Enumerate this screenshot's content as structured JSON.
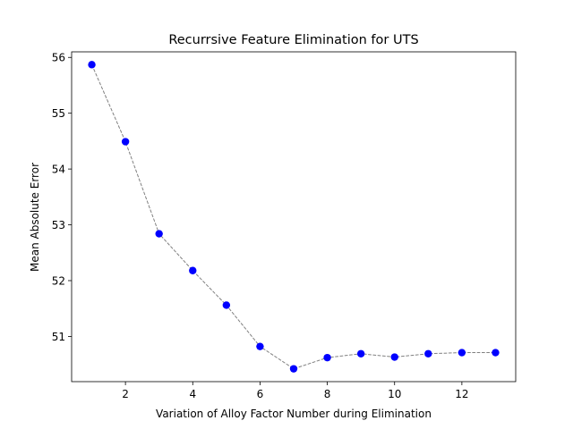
{
  "chart_data": {
    "type": "line",
    "title": "Recurrsive Feature Elimination for UTS",
    "xlabel": "Variation of Alloy Factor Number during Elimination",
    "ylabel": "Mean Absolute Error",
    "x": [
      1,
      2,
      3,
      4,
      5,
      6,
      7,
      8,
      9,
      10,
      11,
      12,
      13
    ],
    "series": [
      {
        "values": [
          55.87,
          54.49,
          52.84,
          52.18,
          51.56,
          50.82,
          50.42,
          50.62,
          50.69,
          50.63,
          50.69,
          50.71,
          50.71
        ],
        "line_color": "#808080",
        "line_style": "dashed",
        "marker_color": "#0000ff"
      }
    ],
    "xlim": [
      0.4,
      13.6
    ],
    "ylim": [
      50.19,
      56.1
    ],
    "xticks": [
      2,
      4,
      6,
      8,
      10,
      12
    ],
    "yticks": [
      51,
      52,
      53,
      54,
      55,
      56
    ],
    "grid": false,
    "legend": "none"
  }
}
